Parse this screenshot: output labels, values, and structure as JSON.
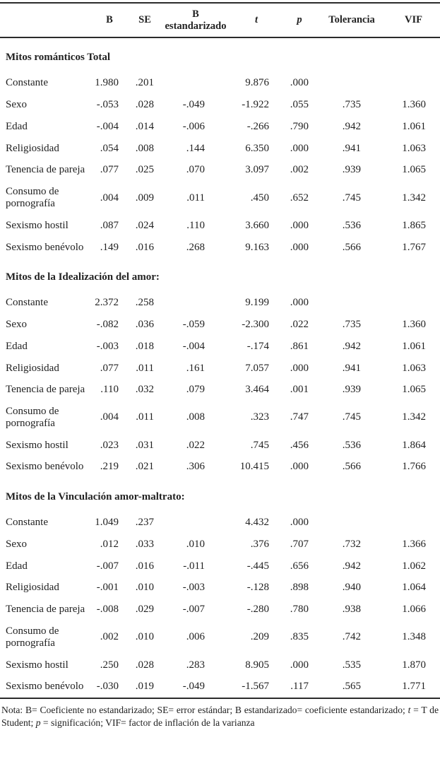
{
  "header": {
    "columns": [
      {
        "label": "",
        "italic": false
      },
      {
        "label": "B",
        "italic": false
      },
      {
        "label": "SE",
        "italic": false
      },
      {
        "label": "B estandarizado",
        "italic": false
      },
      {
        "label": "t",
        "italic": true
      },
      {
        "label": "p",
        "italic": true
      },
      {
        "label": "Tolerancia",
        "italic": false
      },
      {
        "label": "VIF",
        "italic": false
      }
    ]
  },
  "sections": [
    {
      "title": "Mitos románticos Total",
      "rows": [
        {
          "label": "Constante",
          "values": [
            "1.980",
            ".201",
            "",
            "9.876",
            ".000",
            "",
            ""
          ]
        },
        {
          "label": "Sexo",
          "values": [
            "-.053",
            ".028",
            "-.049",
            "-1.922",
            ".055",
            ".735",
            "1.360"
          ]
        },
        {
          "label": "Edad",
          "values": [
            "-.004",
            ".014",
            "-.006",
            "-.266",
            ".790",
            ".942",
            "1.061"
          ]
        },
        {
          "label": "Religiosidad",
          "values": [
            ".054",
            ".008",
            ".144",
            "6.350",
            ".000",
            ".941",
            "1.063"
          ]
        },
        {
          "label": "Tenencia de pareja",
          "values": [
            ".077",
            ".025",
            ".070",
            "3.097",
            ".002",
            ".939",
            "1.065"
          ]
        },
        {
          "label": "Consumo de pornografía",
          "values": [
            ".004",
            ".009",
            ".011",
            ".450",
            ".652",
            ".745",
            "1.342"
          ]
        },
        {
          "label": "Sexismo hostil",
          "values": [
            ".087",
            ".024",
            ".110",
            "3.660",
            ".000",
            ".536",
            "1.865"
          ]
        },
        {
          "label": "Sexismo benévolo",
          "values": [
            ".149",
            ".016",
            ".268",
            "9.163",
            ".000",
            ".566",
            "1.767"
          ]
        }
      ]
    },
    {
      "title": "Mitos de la Idealización del amor:",
      "rows": [
        {
          "label": "Constante",
          "values": [
            "2.372",
            ".258",
            "",
            "9.199",
            ".000",
            "",
            ""
          ]
        },
        {
          "label": "Sexo",
          "values": [
            "-.082",
            ".036",
            "-.059",
            "-2.300",
            ".022",
            ".735",
            "1.360"
          ]
        },
        {
          "label": "Edad",
          "values": [
            "-.003",
            ".018",
            "-.004",
            "-.174",
            ".861",
            ".942",
            "1.061"
          ]
        },
        {
          "label": "Religiosidad",
          "values": [
            ".077",
            ".011",
            ".161",
            "7.057",
            ".000",
            ".941",
            "1.063"
          ]
        },
        {
          "label": "Tenencia de pareja",
          "values": [
            ".110",
            ".032",
            ".079",
            "3.464",
            ".001",
            ".939",
            "1.065"
          ]
        },
        {
          "label": "Consumo de pornografía",
          "values": [
            ".004",
            ".011",
            ".008",
            ".323",
            ".747",
            ".745",
            "1.342"
          ]
        },
        {
          "label": "Sexismo hostil",
          "values": [
            ".023",
            ".031",
            ".022",
            ".745",
            ".456",
            ".536",
            "1.864"
          ]
        },
        {
          "label": "Sexismo benévolo",
          "values": [
            ".219",
            ".021",
            ".306",
            "10.415",
            ".000",
            ".566",
            "1.766"
          ]
        }
      ]
    },
    {
      "title": "Mitos de la Vinculación amor-maltrato:",
      "rows": [
        {
          "label": "Constante",
          "values": [
            "1.049",
            ".237",
            "",
            "4.432",
            ".000",
            "",
            ""
          ]
        },
        {
          "label": "Sexo",
          "values": [
            ".012",
            ".033",
            ".010",
            ".376",
            ".707",
            ".732",
            "1.366"
          ]
        },
        {
          "label": "Edad",
          "values": [
            "-.007",
            ".016",
            "-.011",
            "-.445",
            ".656",
            ".942",
            "1.062"
          ]
        },
        {
          "label": "Religiosidad",
          "values": [
            "-.001",
            ".010",
            "-.003",
            "-.128",
            ".898",
            ".940",
            "1.064"
          ]
        },
        {
          "label": "Tenencia de pareja",
          "values": [
            "-.008",
            ".029",
            "-.007",
            "-.280",
            ".780",
            ".938",
            "1.066"
          ]
        },
        {
          "label": "Consumo de pornografía",
          "values": [
            ".002",
            ".010",
            ".006",
            ".209",
            ".835",
            ".742",
            "1.348"
          ]
        },
        {
          "label": "Sexismo hostil",
          "values": [
            ".250",
            ".028",
            ".283",
            "8.905",
            ".000",
            ".535",
            "1.870"
          ]
        },
        {
          "label": "Sexismo benévolo",
          "values": [
            "-.030",
            ".019",
            "-.049",
            "-1.567",
            ".117",
            ".565",
            "1.771"
          ]
        }
      ]
    }
  ],
  "note": {
    "segments": [
      {
        "text": "Nota: B= Coeficiente no estandarizado; SE= error estándar; B estandarizado= coeficiente estandarizado; ",
        "italic": false
      },
      {
        "text": "t",
        "italic": true
      },
      {
        "text": " = T de Student; ",
        "italic": false
      },
      {
        "text": "p",
        "italic": true
      },
      {
        "text": " = significación; VIF= factor de inflación de la varianza",
        "italic": false
      }
    ]
  },
  "colors": {
    "text": "#222222",
    "rule": "#2b2b2b",
    "background": "#ffffff"
  }
}
